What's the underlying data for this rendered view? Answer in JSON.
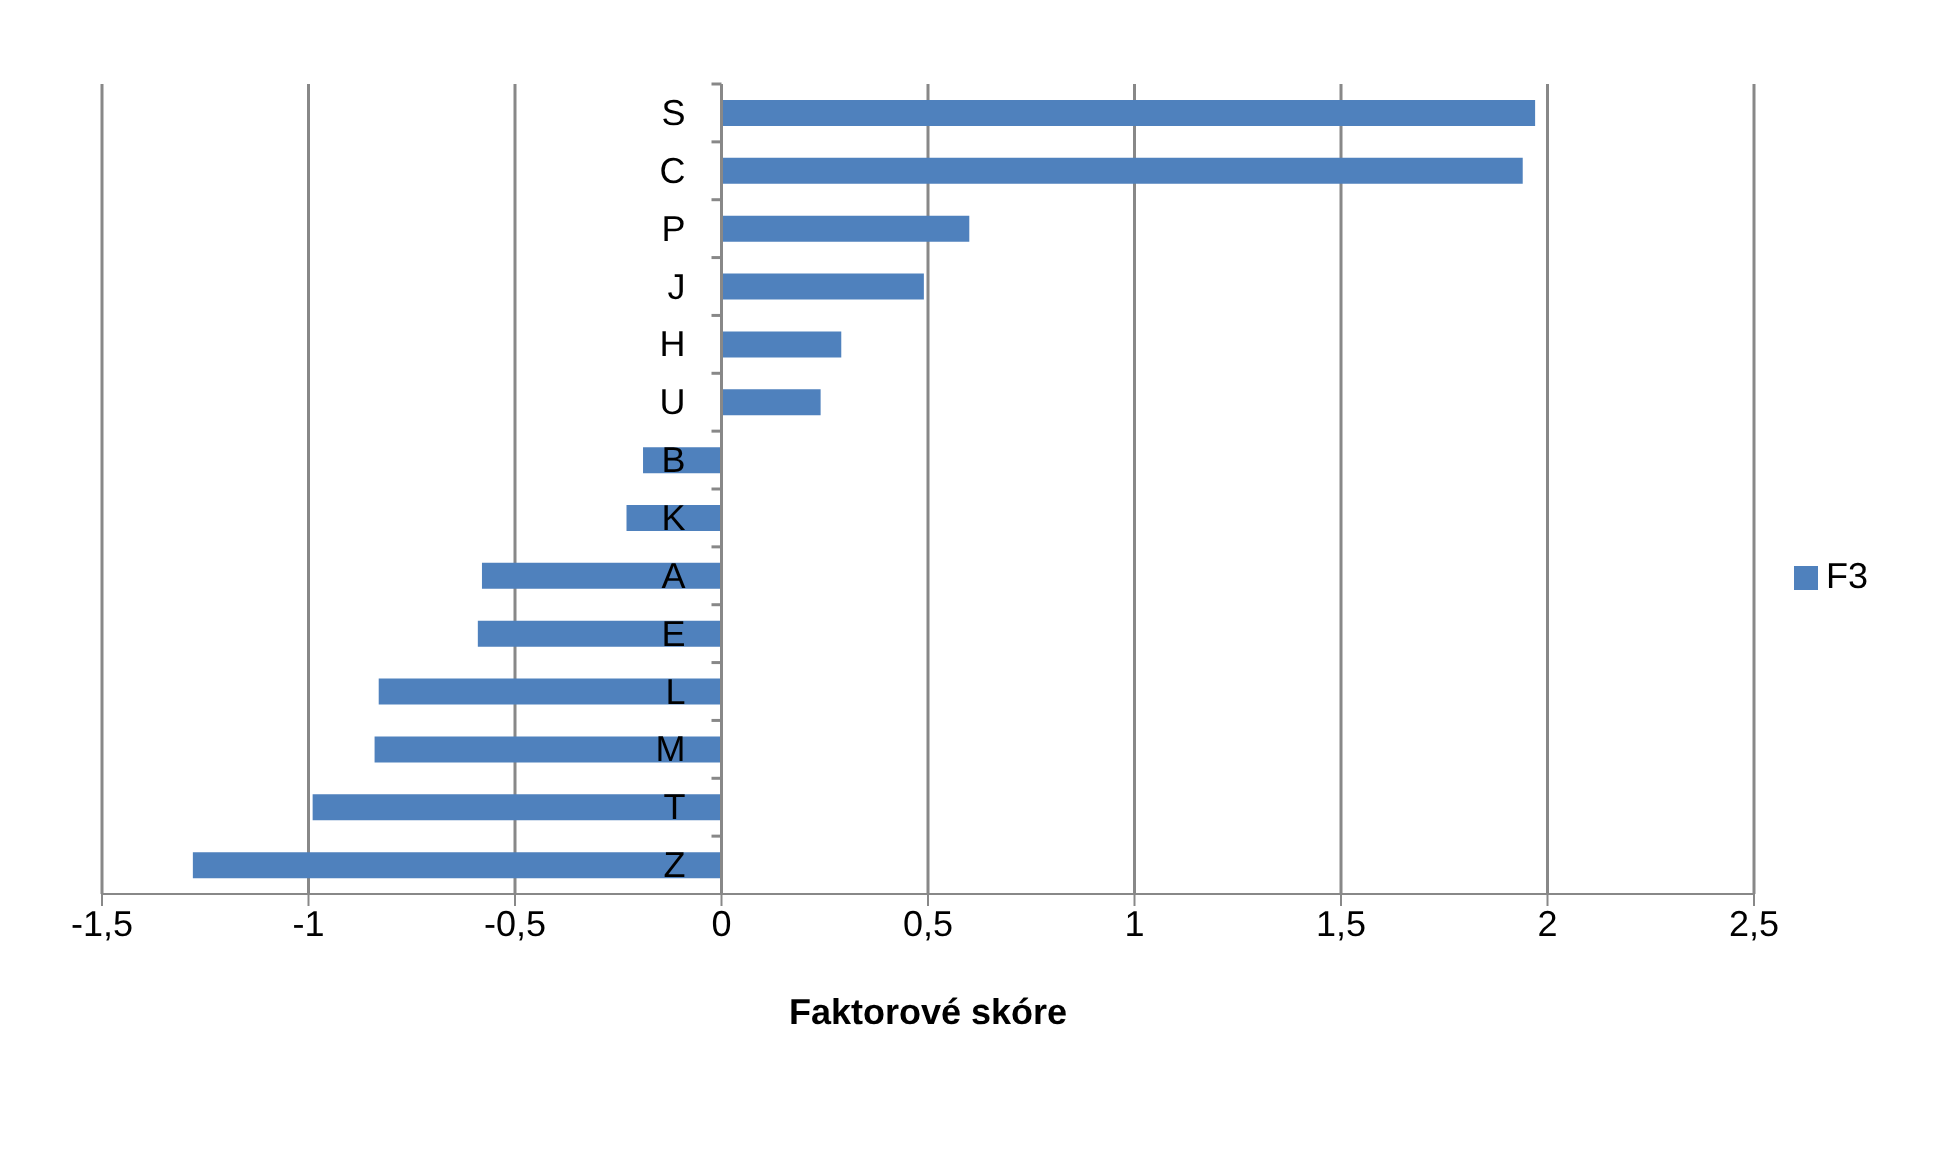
{
  "chart_data": {
    "type": "bar",
    "orientation": "horizontal",
    "xlabel": "Faktorové skóre",
    "categories": [
      "S",
      "C",
      "P",
      "J",
      "H",
      "U",
      "B",
      "K",
      "A",
      "E",
      "L",
      "M",
      "T",
      "Z"
    ],
    "series": [
      {
        "name": "F3",
        "color": "#4f81bd",
        "values": [
          1.97,
          1.94,
          0.6,
          0.49,
          0.29,
          0.24,
          -0.19,
          -0.23,
          -0.58,
          -0.59,
          -0.83,
          -0.84,
          -0.99,
          -1.28
        ]
      }
    ],
    "xlim": [
      -1.5,
      2.5
    ],
    "xticks": [
      {
        "value": -1.5,
        "label": "-1,5"
      },
      {
        "value": -1,
        "label": "-1"
      },
      {
        "value": -0.5,
        "label": "-0,5"
      },
      0,
      {
        "value": 0.5,
        "label": "0,5"
      },
      1,
      {
        "value": 1.5,
        "label": "1,5"
      },
      2,
      {
        "value": 2.5,
        "label": "2,5"
      }
    ],
    "grid": "x",
    "legend": "right"
  }
}
